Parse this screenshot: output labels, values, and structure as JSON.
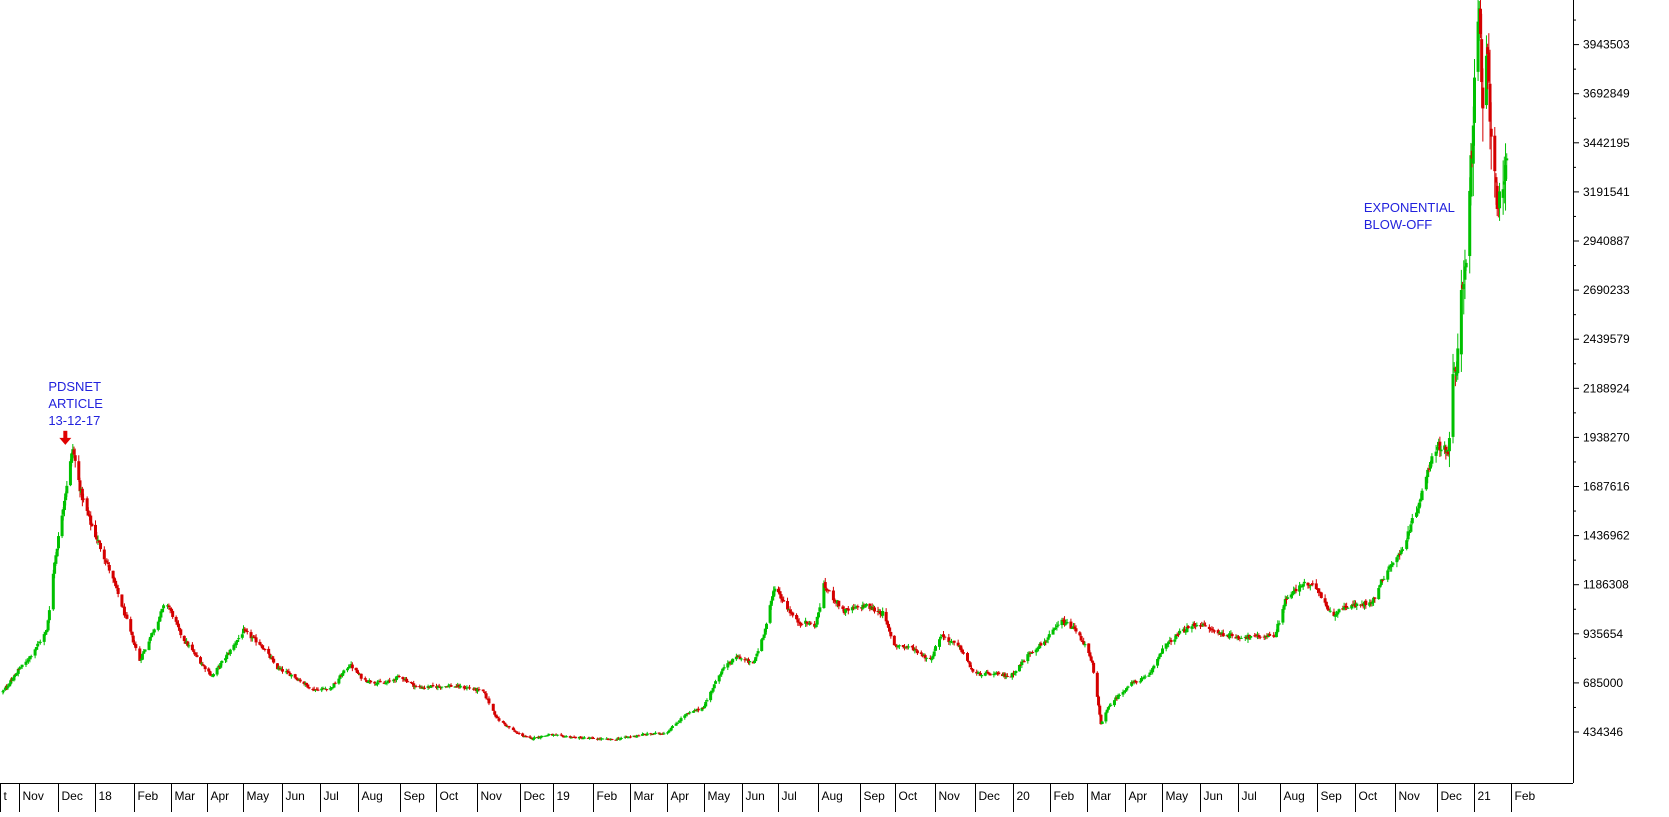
{
  "chart_data": {
    "type": "candlestick",
    "title": "",
    "xlabel": "",
    "ylabel": "",
    "ylim": [
      250000,
      4260000
    ],
    "y_ticks": [
      434346,
      685000,
      935654,
      1186308,
      1436962,
      1687616,
      1938270,
      2188924,
      2439579,
      2690233,
      2940887,
      3191541,
      3442195,
      3692849,
      3943503
    ],
    "x_ticks": [
      {
        "label": "t",
        "date": "2017-10-01"
      },
      {
        "label": "Nov",
        "date": "2017-11-01"
      },
      {
        "label": "Dec",
        "date": "2017-12-01"
      },
      {
        "label": "18",
        "date": "2018-01-01"
      },
      {
        "label": "Feb",
        "date": "2018-02-01"
      },
      {
        "label": "Mar",
        "date": "2018-03-01"
      },
      {
        "label": "Apr",
        "date": "2018-04-01"
      },
      {
        "label": "May",
        "date": "2018-05-01"
      },
      {
        "label": "Jun",
        "date": "2018-06-01"
      },
      {
        "label": "Jul",
        "date": "2018-07-01"
      },
      {
        "label": "Aug",
        "date": "2018-08-01"
      },
      {
        "label": "Sep",
        "date": "2018-09-01"
      },
      {
        "label": "Oct",
        "date": "2018-10-01"
      },
      {
        "label": "Nov",
        "date": "2018-11-01"
      },
      {
        "label": "Dec",
        "date": "2018-12-01"
      },
      {
        "label": "19",
        "date": "2019-01-01"
      },
      {
        "label": "Feb",
        "date": "2019-02-01"
      },
      {
        "label": "Mar",
        "date": "2019-03-01"
      },
      {
        "label": "Apr",
        "date": "2019-04-01"
      },
      {
        "label": "May",
        "date": "2019-05-01"
      },
      {
        "label": "Jun",
        "date": "2019-06-01"
      },
      {
        "label": "Jul",
        "date": "2019-07-01"
      },
      {
        "label": "Aug",
        "date": "2019-08-01"
      },
      {
        "label": "Sep",
        "date": "2019-09-01"
      },
      {
        "label": "Oct",
        "date": "2019-10-01"
      },
      {
        "label": "Nov",
        "date": "2019-11-01"
      },
      {
        "label": "Dec",
        "date": "2019-12-01"
      },
      {
        "label": "20",
        "date": "2020-01-01"
      },
      {
        "label": "Feb",
        "date": "2020-02-01"
      },
      {
        "label": "Mar",
        "date": "2020-03-01"
      },
      {
        "label": "Apr",
        "date": "2020-04-01"
      },
      {
        "label": "May",
        "date": "2020-05-01"
      },
      {
        "label": "Jun",
        "date": "2020-06-01"
      },
      {
        "label": "Jul",
        "date": "2020-07-01"
      },
      {
        "label": "Aug",
        "date": "2020-08-01"
      },
      {
        "label": "Sep",
        "date": "2020-09-01"
      },
      {
        "label": "Oct",
        "date": "2020-10-01"
      },
      {
        "label": "Nov",
        "date": "2020-11-01"
      },
      {
        "label": "Dec",
        "date": "2020-12-01"
      },
      {
        "label": "21",
        "date": "2021-01-01"
      },
      {
        "label": "Feb",
        "date": "2021-02-01"
      }
    ],
    "price_path": [
      {
        "date": "2017-10-05",
        "close": 640000
      },
      {
        "date": "2017-10-20",
        "close": 700000
      },
      {
        "date": "2017-11-05",
        "close": 780000
      },
      {
        "date": "2017-11-15",
        "close": 880000
      },
      {
        "date": "2017-11-22",
        "close": 950000
      },
      {
        "date": "2017-11-28",
        "close": 1300000
      },
      {
        "date": "2017-12-04",
        "close": 1550000
      },
      {
        "date": "2017-12-08",
        "close": 1700000
      },
      {
        "date": "2017-12-13",
        "close": 1880000
      },
      {
        "date": "2017-12-20",
        "close": 1650000
      },
      {
        "date": "2017-12-28",
        "close": 1500000
      },
      {
        "date": "2018-01-10",
        "close": 1300000
      },
      {
        "date": "2018-01-20",
        "close": 1120000
      },
      {
        "date": "2018-02-05",
        "close": 800000
      },
      {
        "date": "2018-02-15",
        "close": 950000
      },
      {
        "date": "2018-02-25",
        "close": 1100000
      },
      {
        "date": "2018-03-10",
        "close": 920000
      },
      {
        "date": "2018-03-25",
        "close": 800000
      },
      {
        "date": "2018-04-05",
        "close": 720000
      },
      {
        "date": "2018-04-20",
        "close": 850000
      },
      {
        "date": "2018-05-01",
        "close": 950000
      },
      {
        "date": "2018-05-15",
        "close": 880000
      },
      {
        "date": "2018-05-28",
        "close": 760000
      },
      {
        "date": "2018-06-10",
        "close": 720000
      },
      {
        "date": "2018-06-25",
        "close": 650000
      },
      {
        "date": "2018-07-10",
        "close": 660000
      },
      {
        "date": "2018-07-25",
        "close": 780000
      },
      {
        "date": "2018-08-05",
        "close": 700000
      },
      {
        "date": "2018-08-20",
        "close": 680000
      },
      {
        "date": "2018-09-01",
        "close": 720000
      },
      {
        "date": "2018-09-15",
        "close": 660000
      },
      {
        "date": "2018-10-10",
        "close": 670000
      },
      {
        "date": "2018-10-25",
        "close": 660000
      },
      {
        "date": "2018-11-05",
        "close": 640000
      },
      {
        "date": "2018-11-15",
        "close": 500000
      },
      {
        "date": "2018-11-28",
        "close": 430000
      },
      {
        "date": "2018-12-10",
        "close": 400000
      },
      {
        "date": "2018-12-28",
        "close": 420000
      },
      {
        "date": "2019-01-20",
        "close": 405000
      },
      {
        "date": "2019-02-15",
        "close": 395000
      },
      {
        "date": "2019-03-10",
        "close": 420000
      },
      {
        "date": "2019-03-31",
        "close": 430000
      },
      {
        "date": "2019-04-15",
        "close": 520000
      },
      {
        "date": "2019-04-30",
        "close": 560000
      },
      {
        "date": "2019-05-15",
        "close": 750000
      },
      {
        "date": "2019-05-28",
        "close": 820000
      },
      {
        "date": "2019-06-10",
        "close": 780000
      },
      {
        "date": "2019-06-20",
        "close": 960000
      },
      {
        "date": "2019-06-28",
        "close": 1180000
      },
      {
        "date": "2019-07-05",
        "close": 1100000
      },
      {
        "date": "2019-07-15",
        "close": 1000000
      },
      {
        "date": "2019-07-30",
        "close": 980000
      },
      {
        "date": "2019-08-05",
        "close": 1180000
      },
      {
        "date": "2019-08-20",
        "close": 1050000
      },
      {
        "date": "2019-09-05",
        "close": 1080000
      },
      {
        "date": "2019-09-20",
        "close": 1040000
      },
      {
        "date": "2019-09-30",
        "close": 880000
      },
      {
        "date": "2019-10-15",
        "close": 860000
      },
      {
        "date": "2019-10-28",
        "close": 800000
      },
      {
        "date": "2019-11-05",
        "close": 930000
      },
      {
        "date": "2019-11-20",
        "close": 860000
      },
      {
        "date": "2019-11-30",
        "close": 730000
      },
      {
        "date": "2019-12-15",
        "close": 730000
      },
      {
        "date": "2019-12-30",
        "close": 720000
      },
      {
        "date": "2020-01-15",
        "close": 840000
      },
      {
        "date": "2020-01-28",
        "close": 900000
      },
      {
        "date": "2020-02-10",
        "close": 1000000
      },
      {
        "date": "2020-02-20",
        "close": 960000
      },
      {
        "date": "2020-02-28",
        "close": 880000
      },
      {
        "date": "2020-03-05",
        "close": 780000
      },
      {
        "date": "2020-03-12",
        "close": 480000
      },
      {
        "date": "2020-03-20",
        "close": 580000
      },
      {
        "date": "2020-04-05",
        "close": 680000
      },
      {
        "date": "2020-04-20",
        "close": 720000
      },
      {
        "date": "2020-05-01",
        "close": 860000
      },
      {
        "date": "2020-05-15",
        "close": 940000
      },
      {
        "date": "2020-05-30",
        "close": 990000
      },
      {
        "date": "2020-06-15",
        "close": 940000
      },
      {
        "date": "2020-06-30",
        "close": 920000
      },
      {
        "date": "2020-07-15",
        "close": 920000
      },
      {
        "date": "2020-07-28",
        "close": 930000
      },
      {
        "date": "2020-08-05",
        "close": 1110000
      },
      {
        "date": "2020-08-20",
        "close": 1190000
      },
      {
        "date": "2020-09-01",
        "close": 1170000
      },
      {
        "date": "2020-09-12",
        "close": 1030000
      },
      {
        "date": "2020-09-25",
        "close": 1080000
      },
      {
        "date": "2020-10-05",
        "close": 1080000
      },
      {
        "date": "2020-10-15",
        "close": 1110000
      },
      {
        "date": "2020-10-25",
        "close": 1260000
      },
      {
        "date": "2020-11-05",
        "close": 1350000
      },
      {
        "date": "2020-11-15",
        "close": 1550000
      },
      {
        "date": "2020-11-22",
        "close": 1700000
      },
      {
        "date": "2020-11-28",
        "close": 1880000
      },
      {
        "date": "2020-12-05",
        "close": 1900000
      },
      {
        "date": "2020-12-10",
        "close": 1860000
      },
      {
        "date": "2020-12-14",
        "close": 2230000
      },
      {
        "date": "2020-12-17",
        "close": 2250000
      },
      {
        "date": "2020-12-21",
        "close": 2680000
      },
      {
        "date": "2020-12-25",
        "close": 2900000
      },
      {
        "date": "2020-12-29",
        "close": 3300000
      },
      {
        "date": "2021-01-02",
        "close": 3800000
      },
      {
        "date": "2021-01-05",
        "close": 4100000
      },
      {
        "date": "2021-01-08",
        "close": 3600000
      },
      {
        "date": "2021-01-12",
        "close": 3850000
      },
      {
        "date": "2021-01-16",
        "close": 3400000
      },
      {
        "date": "2021-01-20",
        "close": 3200000
      },
      {
        "date": "2021-01-24",
        "close": 3050000
      },
      {
        "date": "2021-01-28",
        "close": 3300000
      }
    ],
    "series_colors": {
      "up": "#00c000",
      "down": "#d40000"
    },
    "grid": false,
    "axis_side": "right",
    "annotations": [
      {
        "lines": [
          "PDSNET",
          "ARTICLE",
          "13-12-17"
        ],
        "date": "2017-12-13",
        "value": 1880000,
        "marker": "down-arrow",
        "marker_color": "#e00000"
      },
      {
        "lines": [
          "EXPONENTIAL",
          "BLOW-OFF"
        ],
        "date": "2020-12-21",
        "value": 2680000,
        "marker": "none"
      }
    ],
    "annotation_color": "#2222dd"
  }
}
